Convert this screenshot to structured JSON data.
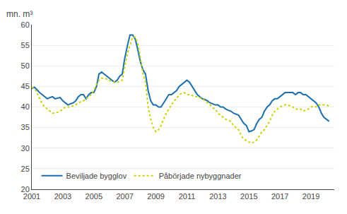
{
  "chart_data": {
    "type": "line",
    "y_label": "mn. m³",
    "x": [
      2001.0,
      2001.17,
      2001.33,
      2001.5,
      2001.67,
      2001.83,
      2002.0,
      2002.17,
      2002.33,
      2002.5,
      2002.67,
      2002.83,
      2003.0,
      2003.17,
      2003.33,
      2003.5,
      2003.67,
      2003.83,
      2004.0,
      2004.17,
      2004.33,
      2004.5,
      2004.67,
      2004.83,
      2005.0,
      2005.17,
      2005.33,
      2005.5,
      2005.67,
      2005.83,
      2006.0,
      2006.17,
      2006.33,
      2006.5,
      2006.67,
      2006.83,
      2007.0,
      2007.17,
      2007.33,
      2007.5,
      2007.67,
      2007.83,
      2008.0,
      2008.17,
      2008.33,
      2008.5,
      2008.67,
      2008.83,
      2009.0,
      2009.17,
      2009.33,
      2009.5,
      2009.67,
      2009.83,
      2010.0,
      2010.17,
      2010.33,
      2010.5,
      2010.67,
      2010.83,
      2011.0,
      2011.17,
      2011.33,
      2011.5,
      2011.67,
      2011.83,
      2012.0,
      2012.17,
      2012.33,
      2012.5,
      2012.67,
      2012.83,
      2013.0,
      2013.17,
      2013.33,
      2013.5,
      2013.67,
      2013.83,
      2014.0,
      2014.17,
      2014.33,
      2014.5,
      2014.67,
      2014.83,
      2015.0,
      2015.17,
      2015.33,
      2015.5,
      2015.67,
      2015.83,
      2016.0,
      2016.17,
      2016.33,
      2016.5,
      2016.67,
      2016.83,
      2017.0,
      2017.17,
      2017.33,
      2017.5,
      2017.67,
      2017.83,
      2018.0,
      2018.17,
      2018.33,
      2018.5,
      2018.67,
      2018.83,
      2019.0,
      2019.17,
      2019.33,
      2019.5,
      2019.67,
      2019.83,
      2020.0,
      2020.17
    ],
    "series": [
      {
        "name": "Beviljade bygglov",
        "color": "#1a6faf",
        "line_style": "solid",
        "values": [
          44.5,
          44.8,
          44.2,
          43.5,
          43.0,
          42.5,
          42.0,
          42.3,
          42.5,
          42.0,
          42.2,
          42.3,
          41.5,
          41.0,
          40.5,
          40.8,
          41.0,
          41.5,
          42.5,
          43.0,
          43.0,
          42.0,
          43.0,
          43.5,
          43.5,
          45.0,
          48.0,
          48.5,
          48.0,
          47.5,
          47.0,
          46.5,
          46.0,
          46.5,
          47.5,
          48.0,
          52.0,
          55.0,
          57.5,
          57.5,
          56.5,
          54.0,
          51.0,
          49.0,
          48.0,
          44.0,
          41.5,
          40.5,
          40.5,
          40.0,
          40.0,
          41.0,
          42.0,
          43.0,
          43.0,
          43.5,
          44.0,
          45.0,
          45.5,
          46.0,
          46.5,
          46.0,
          45.0,
          44.0,
          43.0,
          42.5,
          42.0,
          41.8,
          41.5,
          41.0,
          40.8,
          40.5,
          40.5,
          40.0,
          40.0,
          39.5,
          39.2,
          39.0,
          38.5,
          38.2,
          38.0,
          37.0,
          36.0,
          35.5,
          34.0,
          34.2,
          34.5,
          36.0,
          37.0,
          37.5,
          39.0,
          40.0,
          40.5,
          41.5,
          42.0,
          42.0,
          42.5,
          43.0,
          43.5,
          43.5,
          43.5,
          43.5,
          43.0,
          43.5,
          43.5,
          43.0,
          43.0,
          42.5,
          42.0,
          41.5,
          41.0,
          40.0,
          38.5,
          37.5,
          37.0,
          36.5
        ]
      },
      {
        "name": "Påbörjade nybyggnader",
        "color": "#c8d400",
        "line_style": "dotted",
        "values": [
          44.8,
          44.5,
          43.5,
          42.0,
          40.8,
          40.0,
          39.5,
          39.0,
          38.5,
          38.5,
          38.8,
          39.0,
          39.5,
          40.0,
          40.0,
          40.0,
          40.3,
          40.5,
          41.0,
          41.3,
          41.5,
          42.0,
          42.5,
          43.0,
          44.0,
          45.5,
          46.5,
          47.0,
          47.0,
          46.8,
          46.5,
          46.2,
          46.0,
          46.0,
          46.2,
          46.5,
          50.0,
          53.0,
          55.0,
          57.0,
          57.0,
          55.5,
          52.0,
          48.0,
          46.0,
          40.0,
          37.0,
          35.0,
          34.0,
          34.5,
          35.5,
          37.0,
          38.5,
          39.5,
          40.5,
          41.5,
          42.0,
          43.0,
          43.3,
          43.5,
          43.0,
          43.0,
          42.8,
          42.5,
          42.5,
          42.2,
          42.0,
          41.5,
          41.0,
          40.5,
          39.8,
          39.5,
          38.5,
          38.0,
          37.5,
          37.0,
          36.8,
          36.5,
          35.5,
          35.0,
          34.5,
          33.0,
          32.2,
          31.8,
          31.5,
          31.2,
          31.5,
          32.0,
          33.0,
          34.0,
          34.5,
          35.5,
          36.5,
          38.0,
          39.0,
          39.5,
          40.0,
          40.3,
          40.5,
          40.5,
          40.3,
          40.0,
          39.5,
          39.5,
          39.5,
          39.0,
          39.3,
          39.5,
          40.0,
          40.2,
          40.0,
          40.5,
          40.5,
          40.5,
          40.5,
          40.2
        ]
      }
    ],
    "xlim": [
      2001.0,
      2020.5
    ],
    "xticks": [
      2001,
      2003,
      2005,
      2007,
      2009,
      2011,
      2013,
      2015,
      2017,
      2019
    ],
    "ylim": [
      20,
      60
    ],
    "yticks": [
      20,
      25,
      30,
      35,
      40,
      45,
      50,
      55,
      60
    ],
    "grid": true,
    "legend": "lower left"
  }
}
